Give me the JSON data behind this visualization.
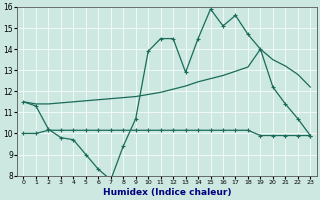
{
  "xlabel": "Humidex (Indice chaleur)",
  "xlim": [
    -0.5,
    23.5
  ],
  "ylim": [
    8,
    16
  ],
  "xticks": [
    0,
    1,
    2,
    3,
    4,
    5,
    6,
    7,
    8,
    9,
    10,
    11,
    12,
    13,
    14,
    15,
    16,
    17,
    18,
    19,
    20,
    21,
    22,
    23
  ],
  "yticks": [
    8,
    9,
    10,
    11,
    12,
    13,
    14,
    15,
    16
  ],
  "background_color": "#cce8e0",
  "line_color": "#1a6b5a",
  "line1_x": [
    0,
    1,
    2,
    3,
    4,
    5,
    6,
    7,
    8,
    9,
    10,
    11,
    12,
    13,
    14,
    15,
    16,
    17,
    18,
    19,
    20,
    21,
    22,
    23
  ],
  "line1_y": [
    11.5,
    11.3,
    10.2,
    9.8,
    9.7,
    9.0,
    8.3,
    7.8,
    9.4,
    10.7,
    13.9,
    14.5,
    14.5,
    12.9,
    14.5,
    15.9,
    15.1,
    15.6,
    14.7,
    14.0,
    12.2,
    11.4,
    10.7,
    9.9
  ],
  "line2_x": [
    0,
    1,
    2,
    3,
    4,
    5,
    6,
    7,
    8,
    9,
    10,
    11,
    12,
    13,
    14,
    15,
    16,
    17,
    18,
    19,
    20,
    21,
    22,
    23
  ],
  "line2_y": [
    11.5,
    11.4,
    11.4,
    11.45,
    11.5,
    11.55,
    11.6,
    11.65,
    11.7,
    11.75,
    11.85,
    11.95,
    12.1,
    12.25,
    12.45,
    12.6,
    12.75,
    12.95,
    13.15,
    14.0,
    13.5,
    13.2,
    12.8,
    12.2
  ],
  "line3_x": [
    0,
    1,
    2,
    3,
    4,
    5,
    6,
    7,
    8,
    9,
    10,
    11,
    12,
    13,
    14,
    15,
    16,
    17,
    18,
    19,
    20,
    21,
    22,
    23
  ],
  "line3_y": [
    10.0,
    10.0,
    10.15,
    10.15,
    10.15,
    10.15,
    10.15,
    10.15,
    10.15,
    10.15,
    10.15,
    10.15,
    10.15,
    10.15,
    10.15,
    10.15,
    10.15,
    10.15,
    10.15,
    9.9,
    9.9,
    9.9,
    9.9,
    9.9
  ]
}
